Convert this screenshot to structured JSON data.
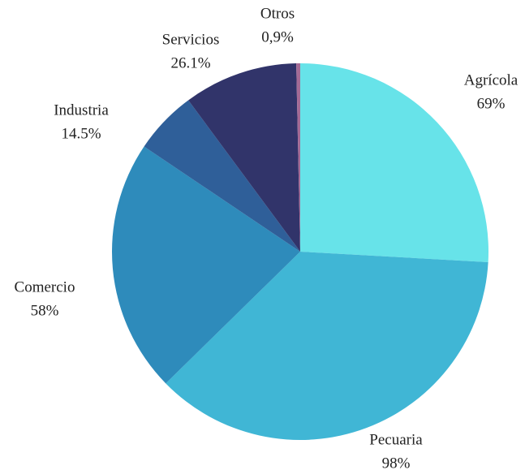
{
  "chart_data": {
    "type": "pie",
    "categories": [
      "Agrícola",
      "Pecuaria",
      "Comercio",
      "Industria",
      "Servicios",
      "Otros"
    ],
    "values": [
      69,
      98,
      58,
      14.5,
      26.1,
      0.9
    ],
    "value_labels": [
      "69%",
      "98%",
      "58%",
      "14.5%",
      "26.1%",
      "0,9%"
    ],
    "colors": [
      "#67e3e9",
      "#40b6d5",
      "#2e8bbb",
      "#2f5f99",
      "#31346a",
      "#a46b96"
    ]
  }
}
